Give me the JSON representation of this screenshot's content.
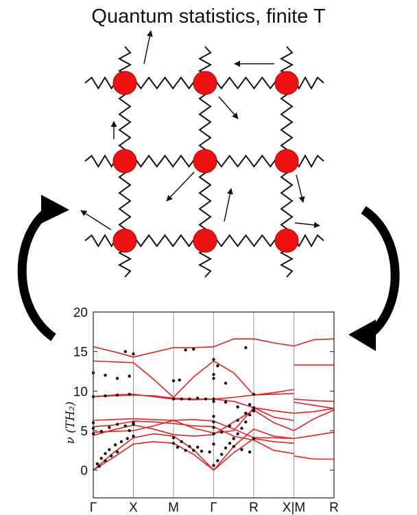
{
  "title": "Quantum statistics, finite T",
  "colors": {
    "node": "#ee1111",
    "node_stroke": "#b00000",
    "spring": "#111111",
    "band": "#e82020",
    "point": "#111111",
    "cycle_arrow": "#000000"
  },
  "lattice": {
    "rows": 3,
    "cols": 3,
    "displacement_arrows": [
      {
        "row": 0,
        "col": 0,
        "dir": "up-right"
      },
      {
        "row": 0,
        "col": 2,
        "dir": "left"
      },
      {
        "row": 0,
        "col": 1,
        "dir": "down-right"
      },
      {
        "row": 1,
        "col": 0,
        "dir": "up"
      },
      {
        "row": 1,
        "col": 1,
        "dir": "down-left"
      },
      {
        "row": 1,
        "col": 2,
        "dir": "down"
      },
      {
        "row": 2,
        "col": 0,
        "dir": "up-left"
      },
      {
        "row": 2,
        "col": 1,
        "dir": "up-right"
      },
      {
        "row": 2,
        "col": 2,
        "dir": "right"
      }
    ]
  },
  "cycle_arrows": [
    "left-upward",
    "right-downward"
  ],
  "chart_data": {
    "type": "line",
    "ylabel": "ν (TH₂)",
    "ylim": [
      -3.5,
      20
    ],
    "yticks": [
      0,
      5,
      10,
      15,
      20
    ],
    "xticks": [
      "Γ",
      "X",
      "M",
      "Γ",
      "R",
      "X|M",
      "R"
    ],
    "x_positions": [
      0,
      1,
      2,
      3,
      4,
      5,
      6
    ],
    "series": [
      {
        "x": [
          0,
          0.5,
          1,
          1.5,
          2,
          2.5,
          3,
          3.5,
          4,
          4.5,
          5
        ],
        "y": [
          0,
          2.2,
          4.1,
          4.6,
          4.3,
          2.6,
          0,
          3.0,
          5.2,
          4.3,
          4.0
        ]
      },
      {
        "x": [
          0,
          0.5,
          1,
          1.5,
          2,
          2.5,
          3,
          3.5,
          4,
          4.5,
          5
        ],
        "y": [
          0,
          1.6,
          3.3,
          3.6,
          3.4,
          2.0,
          0,
          2.2,
          4.0,
          3.6,
          3.4
        ]
      },
      {
        "x": [
          0,
          0.5,
          1,
          1.5,
          2,
          2.5,
          3,
          3.5,
          4,
          4.5,
          5
        ],
        "y": [
          4.4,
          5.1,
          5.7,
          5.2,
          4.5,
          4.3,
          4.5,
          6.1,
          7.6,
          6.0,
          5.0
        ]
      },
      {
        "x": [
          0,
          0.5,
          1,
          1.5,
          2,
          2.5,
          3,
          3.5,
          4,
          4.5,
          5
        ],
        "y": [
          4.8,
          4.9,
          5.0,
          5.6,
          6.3,
          5.3,
          4.7,
          5.0,
          7.9,
          6.7,
          6.3
        ]
      },
      {
        "x": [
          0,
          0.5,
          1,
          1.5,
          2,
          2.5,
          3,
          3.5,
          4,
          4.5,
          5
        ],
        "y": [
          5.5,
          5.7,
          6.2,
          6.1,
          5.9,
          5.6,
          5.5,
          4.3,
          3.8,
          2.5,
          2.1
        ]
      },
      {
        "x": [
          0,
          0.5,
          1,
          1.5,
          2,
          2.5,
          3,
          3.5,
          4,
          4.5,
          5
        ],
        "y": [
          6.3,
          6.4,
          6.5,
          6.4,
          6.3,
          6.4,
          6.2,
          5.2,
          4.1,
          4.1,
          4.0
        ]
      },
      {
        "x": [
          0,
          0.5,
          1,
          1.5,
          2,
          2.5,
          3,
          3.5,
          4,
          4.5,
          5
        ],
        "y": [
          9.3,
          9.5,
          9.6,
          9.3,
          9.0,
          8.9,
          9.0,
          8.7,
          7.9,
          7.5,
          7.2
        ]
      },
      {
        "x": [
          0,
          0.5,
          1,
          1.5,
          2,
          2.5,
          3,
          3.5,
          4,
          4.5,
          5
        ],
        "y": [
          9.3,
          9.4,
          9.5,
          9.4,
          9.1,
          9.0,
          9.0,
          9.2,
          9.5,
          9.6,
          9.7
        ]
      },
      {
        "x": [
          0,
          0.5,
          1,
          1.5,
          2,
          2.5,
          3,
          3.5,
          4,
          4.5,
          5
        ],
        "y": [
          13.8,
          13.7,
          13.6,
          11.5,
          9.2,
          11.8,
          13.8,
          12.3,
          9.5,
          9.8,
          10.2
        ]
      },
      {
        "x": [
          0,
          0.5,
          1,
          1.5,
          2,
          2.5,
          3,
          3.5,
          4,
          4.5,
          5
        ],
        "y": [
          15.6,
          15.0,
          14.3,
          14.9,
          15.5,
          15.5,
          15.6,
          16.6,
          16.6,
          16.1,
          15.7
        ]
      },
      {
        "x": [
          5,
          5.5,
          6
        ],
        "y": [
          1.8,
          1.4,
          1.4
        ]
      },
      {
        "x": [
          5,
          5.5,
          6
        ],
        "y": [
          4.0,
          4.4,
          4.8
        ]
      },
      {
        "x": [
          5,
          5.5,
          6
        ],
        "y": [
          5.0,
          6.5,
          7.6
        ]
      },
      {
        "x": [
          5,
          5.5,
          6
        ],
        "y": [
          7.2,
          7.4,
          7.8
        ]
      },
      {
        "x": [
          5,
          5.5,
          6
        ],
        "y": [
          8.6,
          8.2,
          7.8
        ]
      },
      {
        "x": [
          5,
          5.5,
          6
        ],
        "y": [
          9.0,
          8.8,
          8.7
        ]
      },
      {
        "x": [
          5,
          5.5,
          6
        ],
        "y": [
          13.3,
          13.3,
          13.3
        ]
      },
      {
        "x": [
          5,
          5.5,
          6
        ],
        "y": [
          15.7,
          16.5,
          16.6
        ]
      }
    ],
    "points": [
      {
        "x": 0.1,
        "y": 0.8
      },
      {
        "x": 0.2,
        "y": 1.5
      },
      {
        "x": 0.3,
        "y": 2.1
      },
      {
        "x": 0.4,
        "y": 2.6
      },
      {
        "x": 0.55,
        "y": 3.2
      },
      {
        "x": 0.7,
        "y": 3.6
      },
      {
        "x": 0.85,
        "y": 4.0
      },
      {
        "x": 0.15,
        "y": 0.5
      },
      {
        "x": 0.3,
        "y": 1.2
      },
      {
        "x": 0.45,
        "y": 1.8
      },
      {
        "x": 0.6,
        "y": 2.3
      },
      {
        "x": 0,
        "y": 4.6
      },
      {
        "x": 0,
        "y": 5.3
      },
      {
        "x": 0,
        "y": 6.0
      },
      {
        "x": 0.2,
        "y": 4.9
      },
      {
        "x": 0.4,
        "y": 5.4
      },
      {
        "x": 0.6,
        "y": 5.8
      },
      {
        "x": 0.8,
        "y": 5.6
      },
      {
        "x": 0.9,
        "y": 5.0
      },
      {
        "x": 1,
        "y": 5.8
      },
      {
        "x": 1,
        "y": 4.3
      },
      {
        "x": 1,
        "y": 6.0
      },
      {
        "x": 0,
        "y": 9.3
      },
      {
        "x": 0.3,
        "y": 9.4
      },
      {
        "x": 0.6,
        "y": 9.5
      },
      {
        "x": 0.9,
        "y": 9.6
      },
      {
        "x": 0,
        "y": 12.3
      },
      {
        "x": 0.3,
        "y": 12.0
      },
      {
        "x": 0.6,
        "y": 11.6
      },
      {
        "x": 0.9,
        "y": 11.9
      },
      {
        "x": 0.8,
        "y": 15.0
      },
      {
        "x": 1.0,
        "y": 14.7
      },
      {
        "x": 2,
        "y": 3.4
      },
      {
        "x": 2.1,
        "y": 2.9
      },
      {
        "x": 2.3,
        "y": 2.5
      },
      {
        "x": 2.5,
        "y": 2.5
      },
      {
        "x": 2.7,
        "y": 2.4
      },
      {
        "x": 2.9,
        "y": 2.3
      },
      {
        "x": 2,
        "y": 4.1
      },
      {
        "x": 2.2,
        "y": 3.6
      },
      {
        "x": 2.4,
        "y": 3.0
      },
      {
        "x": 2.6,
        "y": 2.9
      },
      {
        "x": 2,
        "y": 9.0
      },
      {
        "x": 2.2,
        "y": 9.0
      },
      {
        "x": 2.4,
        "y": 9.0
      },
      {
        "x": 2.6,
        "y": 9.1
      },
      {
        "x": 2.8,
        "y": 9.0
      },
      {
        "x": 3,
        "y": 9.0
      },
      {
        "x": 2,
        "y": 11.3
      },
      {
        "x": 2.15,
        "y": 11.4
      },
      {
        "x": 2.3,
        "y": 15.2
      },
      {
        "x": 2.5,
        "y": 15.3
      },
      {
        "x": 3,
        "y": 0.6
      },
      {
        "x": 3,
        "y": 3.3
      },
      {
        "x": 3,
        "y": 4.6
      },
      {
        "x": 3,
        "y": 5.4
      },
      {
        "x": 3,
        "y": 6.1
      },
      {
        "x": 3,
        "y": 6.8
      },
      {
        "x": 3,
        "y": 8.7
      },
      {
        "x": 3,
        "y": 11.6
      },
      {
        "x": 3,
        "y": 12.1
      },
      {
        "x": 3,
        "y": 14.0
      },
      {
        "x": 3.1,
        "y": 1.2
      },
      {
        "x": 3.2,
        "y": 2.0
      },
      {
        "x": 3.3,
        "y": 2.8
      },
      {
        "x": 3.4,
        "y": 3.4
      },
      {
        "x": 3.5,
        "y": 4.0
      },
      {
        "x": 3.6,
        "y": 4.6
      },
      {
        "x": 3.7,
        "y": 5.3
      },
      {
        "x": 3.8,
        "y": 6.1
      },
      {
        "x": 3.9,
        "y": 7.0
      },
      {
        "x": 3.2,
        "y": 4.8
      },
      {
        "x": 3.4,
        "y": 5.6
      },
      {
        "x": 3.6,
        "y": 6.3
      },
      {
        "x": 3.8,
        "y": 7.2
      },
      {
        "x": 4,
        "y": 7.9
      },
      {
        "x": 3.3,
        "y": 8.6
      },
      {
        "x": 3.6,
        "y": 8.0
      },
      {
        "x": 3.9,
        "y": 8.3
      },
      {
        "x": 3.5,
        "y": 3.0
      },
      {
        "x": 3.7,
        "y": 2.6
      },
      {
        "x": 3.9,
        "y": 2.3
      },
      {
        "x": 3.1,
        "y": 13.2
      },
      {
        "x": 3.3,
        "y": 11.0
      },
      {
        "x": 3.8,
        "y": 15.5
      },
      {
        "x": 4,
        "y": 4.0
      },
      {
        "x": 4,
        "y": 7.5
      },
      {
        "x": 4,
        "y": 7.7
      },
      {
        "x": 4,
        "y": 9.6
      }
    ]
  }
}
